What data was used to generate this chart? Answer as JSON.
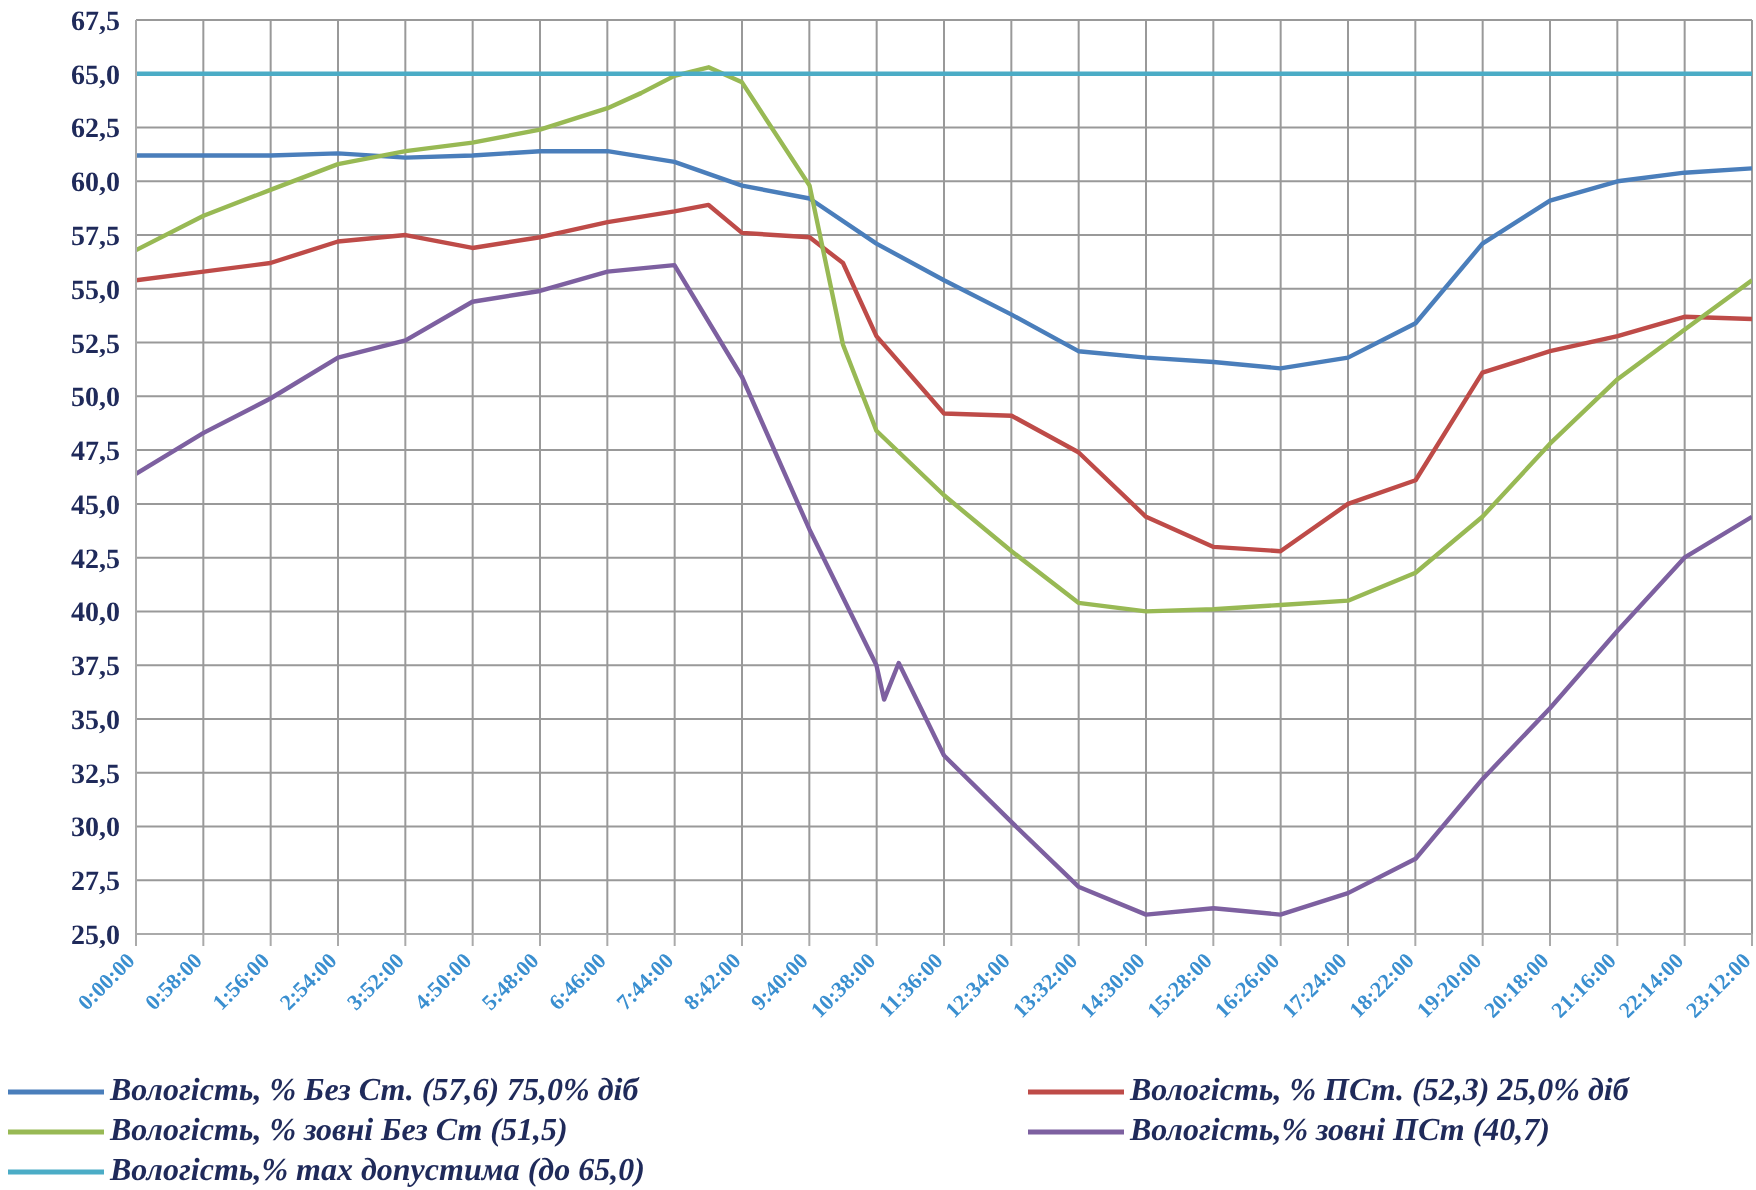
{
  "chart_data": {
    "type": "line",
    "xlim": [
      0,
      23.2
    ],
    "ylim": [
      25,
      67.5
    ],
    "xticks": [
      {
        "value": 0,
        "label": "0:00:00"
      },
      {
        "value": 0.9667,
        "label": "0:58:00"
      },
      {
        "value": 1.9333,
        "label": "1:56:00"
      },
      {
        "value": 2.9,
        "label": "2:54:00"
      },
      {
        "value": 3.8667,
        "label": "3:52:00"
      },
      {
        "value": 4.8333,
        "label": "4:50:00"
      },
      {
        "value": 5.8,
        "label": "5:48:00"
      },
      {
        "value": 6.7667,
        "label": "6:46:00"
      },
      {
        "value": 7.7333,
        "label": "7:44:00"
      },
      {
        "value": 8.7,
        "label": "8:42:00"
      },
      {
        "value": 9.6667,
        "label": "9:40:00"
      },
      {
        "value": 10.6333,
        "label": "10:38:00"
      },
      {
        "value": 11.6,
        "label": "11:36:00"
      },
      {
        "value": 12.5667,
        "label": "12:34:00"
      },
      {
        "value": 13.5333,
        "label": "13:32:00"
      },
      {
        "value": 14.5,
        "label": "14:30:00"
      },
      {
        "value": 15.4667,
        "label": "15:28:00"
      },
      {
        "value": 16.4333,
        "label": "16:26:00"
      },
      {
        "value": 17.4,
        "label": "17:24:00"
      },
      {
        "value": 18.3667,
        "label": "18:22:00"
      },
      {
        "value": 19.3333,
        "label": "19:20:00"
      },
      {
        "value": 20.3,
        "label": "20:18:00"
      },
      {
        "value": 21.2667,
        "label": "21:16:00"
      },
      {
        "value": 22.2333,
        "label": "22:14:00"
      },
      {
        "value": 23.2,
        "label": "23:12:00"
      }
    ],
    "yticks": [
      {
        "value": 25,
        "label": "25,0"
      },
      {
        "value": 27.5,
        "label": "27,5"
      },
      {
        "value": 30,
        "label": "30,0"
      },
      {
        "value": 32.5,
        "label": "32,5"
      },
      {
        "value": 35,
        "label": "35,0"
      },
      {
        "value": 37.5,
        "label": "37,5"
      },
      {
        "value": 40,
        "label": "40,0"
      },
      {
        "value": 42.5,
        "label": "42,5"
      },
      {
        "value": 45,
        "label": "45,0"
      },
      {
        "value": 47.5,
        "label": "47,5"
      },
      {
        "value": 50,
        "label": "50,0"
      },
      {
        "value": 52.5,
        "label": "52,5"
      },
      {
        "value": 55,
        "label": "55,0"
      },
      {
        "value": 57.5,
        "label": "57,5"
      },
      {
        "value": 60,
        "label": "60,0"
      },
      {
        "value": 62.5,
        "label": "62,5"
      },
      {
        "value": 65,
        "label": "65,0"
      },
      {
        "value": 67.5,
        "label": "67,5"
      }
    ],
    "grid": true,
    "legend": "bottom",
    "marker": "none",
    "line_style": "solid",
    "series": [
      {
        "name": "Вологість, % Без Ст. (57,6) 75,0% діб",
        "color": "#4a7ebb",
        "x": [
          0,
          0.97,
          1.93,
          2.9,
          3.87,
          4.83,
          5.8,
          6.77,
          7.73,
          8.7,
          9.67,
          10.63,
          11.6,
          12.57,
          13.53,
          14.5,
          15.47,
          16.43,
          17.4,
          18.37,
          19.33,
          20.3,
          21.27,
          22.23,
          23.2
        ],
        "values": [
          61.2,
          61.2,
          61.2,
          61.3,
          61.1,
          61.2,
          61.4,
          61.4,
          60.9,
          59.8,
          59.2,
          57.1,
          55.4,
          53.8,
          52.1,
          51.8,
          51.6,
          51.3,
          51.8,
          53.4,
          57.1,
          59.1,
          60,
          60.4,
          60.6
        ]
      },
      {
        "name": "Вологість, % ПСт. (52,3) 25,0% діб",
        "color": "#be4b48",
        "x": [
          0,
          0.97,
          1.93,
          2.9,
          3.87,
          4.83,
          5.8,
          6.77,
          7.73,
          8.22,
          8.7,
          9.67,
          10.15,
          10.63,
          11.6,
          12.57,
          13.53,
          14.5,
          15.47,
          16.43,
          17.4,
          18.37,
          19.33,
          20.3,
          21.27,
          22.23,
          23.2
        ],
        "values": [
          55.4,
          55.8,
          56.2,
          57.2,
          57.5,
          56.9,
          57.4,
          58.1,
          58.6,
          58.9,
          57.6,
          57.4,
          56.2,
          52.8,
          49.2,
          49.1,
          47.4,
          44.4,
          43,
          42.8,
          45,
          46.1,
          51.1,
          52.1,
          52.8,
          53.7,
          53.6
        ]
      },
      {
        "name": "Вологість, % зовні Без Ст (51,5)",
        "color": "#98b954",
        "x": [
          0,
          0.97,
          1.93,
          2.9,
          3.87,
          4.83,
          5.8,
          6.77,
          7.25,
          7.73,
          8.22,
          8.7,
          9.67,
          10.15,
          10.63,
          11.6,
          12.57,
          13.53,
          14.5,
          15.47,
          16.43,
          17.4,
          18.37,
          19.33,
          20.3,
          21.27,
          22.23,
          23.2
        ],
        "values": [
          56.8,
          58.4,
          59.6,
          60.8,
          61.4,
          61.8,
          62.4,
          63.4,
          64.1,
          64.9,
          65.3,
          64.6,
          59.8,
          52.4,
          48.4,
          45.4,
          42.8,
          40.4,
          40,
          40.1,
          40.3,
          40.5,
          41.8,
          44.4,
          47.8,
          50.8,
          53.1,
          55.4
        ]
      },
      {
        "name": "Вологість,% зовні ПСт (40,7)",
        "color": "#7d60a0",
        "x": [
          0,
          0.97,
          1.93,
          2.9,
          3.87,
          4.83,
          5.8,
          6.77,
          7.73,
          8.7,
          9.67,
          10.63,
          10.74,
          10.95,
          11.6,
          12.57,
          13.53,
          14.5,
          15.47,
          16.43,
          17.4,
          18.37,
          19.33,
          20.3,
          21.27,
          22.23,
          23.2
        ],
        "values": [
          46.4,
          48.3,
          49.9,
          51.8,
          52.6,
          54.4,
          54.9,
          55.8,
          56.1,
          50.9,
          43.8,
          37.5,
          35.9,
          37.6,
          33.3,
          30.2,
          27.2,
          25.9,
          26.2,
          25.9,
          26.9,
          28.5,
          32.2,
          35.5,
          39.1,
          42.5,
          44.4
        ]
      },
      {
        "name": "Вологість,% max допустима (до 65,0)",
        "color": "#4bacc6",
        "x": [
          0,
          23.2
        ],
        "values": [
          65,
          65
        ]
      }
    ]
  }
}
